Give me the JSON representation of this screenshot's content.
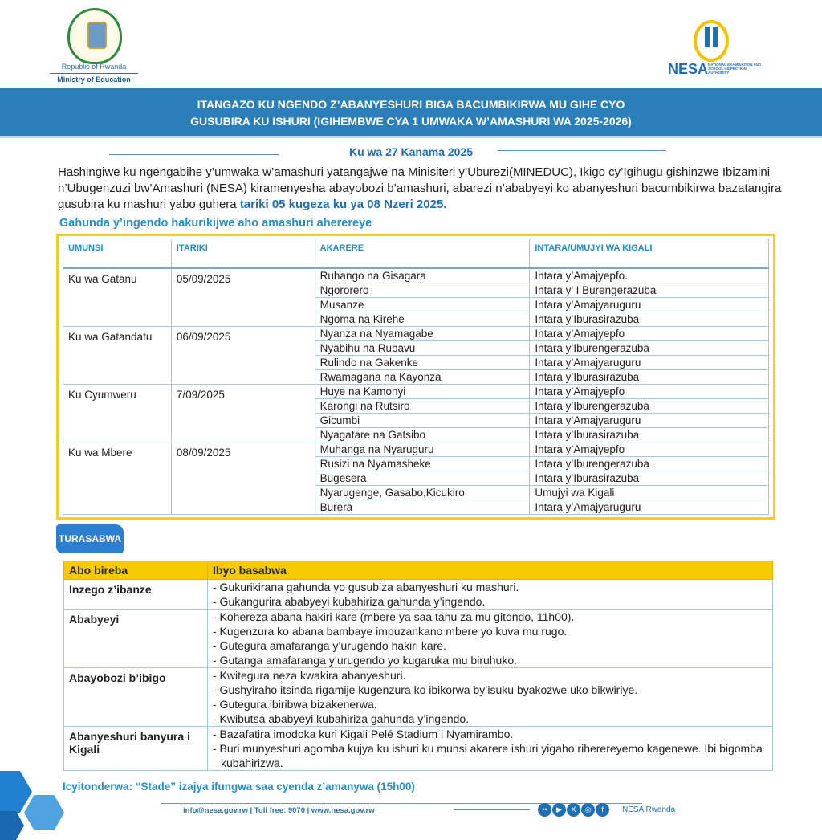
{
  "header": {
    "left_logo_line1": "Republic of Rwanda",
    "left_logo_line2": "Ministry of Education",
    "right_logo_name": "NESA",
    "right_logo_sub": "NATIONAL EXAMINATION AND SCHOOL INSPECTION AUTHORITY"
  },
  "banner": {
    "line1": "ITANGAZO KU NGENDO Z’ABANYESHURI BIGA BACUMBIKIRWA MU GIHE CYO",
    "line2": "GUSUBIRA KU ISHURI (IGIHEMBWE CYA 1 UMWAKA W’AMASHURI WA 2025-2026)"
  },
  "date": "Ku wa 27 Kanama 2025",
  "paragraph": {
    "text": "Hashingiwe ku ngengabihe y’umwaka w’amashuri yatangajwe na Minisiteri y’Uburezi(MINEDUC), Ikigo cy’Igihugu gishinzwe Ibizamini n’Ubugenzuzi bw’Amashuri (NESA) kiramenyesha abayobozi b’amashuri, abarezi n’ababyeyi ko abanyeshuri bacumbikirwa bazatangira gusubira ku mashuri yabo guhera ",
    "highlight": "tariki 05 kugeza ku ya 08 Nzeri 2025."
  },
  "schedule": {
    "title": "Gahunda y’ingendo hakurikijwe aho  amashuri aherereye",
    "headers": [
      "UMUNSI",
      "ITARIKI",
      "AKARERE",
      "INTARA/UMUJYI WA KIGALI"
    ],
    "days": [
      {
        "day": "Ku wa Gatanu",
        "date": "05/09/2025",
        "rows": [
          [
            "Ruhango na Gisagara",
            "Intara y’Amajyepfo."
          ],
          [
            "Ngororero",
            "Intara y’ I Burengerazuba"
          ],
          [
            "Musanze",
            "Intara y’Amajyaruguru"
          ],
          [
            "Ngoma na Kirehe",
            "Intara y’Iburasirazuba"
          ]
        ]
      },
      {
        "day": "Ku wa Gatandatu",
        "date": "06/09/2025",
        "rows": [
          [
            "Nyanza na Nyamagabe",
            "Intara y’Amajyepfo"
          ],
          [
            "Nyabihu na Rubavu",
            "Intara y’Iburengerazuba"
          ],
          [
            "Rulindo na Gakenke",
            "Intara y’Amajyaruguru"
          ],
          [
            "Rwamagana na Kayonza",
            "Intara y’Iburasirazuba"
          ]
        ]
      },
      {
        "day": "Ku Cyumweru",
        "date": "7/09/2025",
        "rows": [
          [
            "Huye na Kamonyi",
            "Intara y’Amajyepfo"
          ],
          [
            "Karongi na Rutsiro",
            "Intara y’Iburengerazuba"
          ],
          [
            "Gicumbi",
            "Intara y’Amajyaruguru"
          ],
          [
            "Nyagatare na Gatsibo",
            "Intara y’Iburasirazuba"
          ]
        ]
      },
      {
        "day": "Ku wa Mbere",
        "date": "08/09/2025",
        "rows": [
          [
            "Muhanga na Nyaruguru",
            "Intara y’Amajyepfo"
          ],
          [
            "Rusizi na Nyamasheke",
            "Intara y’Iburengerazuba"
          ],
          [
            "Bugesera",
            "Intara y’Iburasirazuba"
          ],
          [
            "Nyarugenge, Gasabo,Kicukiro",
            "Umujyi wa Kigali"
          ],
          [
            "Burera",
            "Intara y’Amajyaruguru"
          ]
        ]
      }
    ]
  },
  "requests": {
    "tab": "TURASABWA IKI?",
    "headers": [
      "Abo bireba",
      "Ibyo basabwa"
    ],
    "groups": [
      {
        "who": "Inzego z’ibanze",
        "items": [
          "- Gukurikirana gahunda yo gusubiza abanyeshuri ku mashuri.",
          "- Gukangurira ababyeyi kubahiriza gahunda y’ingendo."
        ]
      },
      {
        "who": "Ababyeyi",
        "items": [
          "- Kohereza abana hakiri kare (mbere ya saa tanu za mu gitondo, 11h00).",
          "- Kugenzura ko abana bambaye impuzankano mbere yo kuva mu rugo.",
          "- Gutegura amafaranga y’urugendo hakiri kare.",
          "- Gutanga amafaranga y’urugendo yo kugaruka mu biruhuko."
        ]
      },
      {
        "who": "Abayobozi b’ibigo",
        "items": [
          "- Kwitegura neza kwakira abanyeshuri.",
          "- Gushyiraho itsinda rigamije kugenzura ko ibikorwa by’isuku byakozwe uko bikwiriye.",
          "- Gutegura ibiribwa bizakenerwa.",
          "- Kwibutsa ababyeyi kubahiriza gahunda y’ingendo."
        ]
      },
      {
        "who": "Abanyeshuri banyura i Kigali",
        "items": [
          "- Bazafatira imodoka kuri Kigali Pelé Stadium i Nyamirambo.",
          "- Buri munyeshuri agomba kujya ku ishuri ku munsi akarere ishuri yigaho riherereyemo kagenewe. Ibi bigomba kubahirizwa."
        ]
      }
    ]
  },
  "note": "Icyitonderwa: “Stade” izajya ifungwa saa cyenda z’amanywa (15h00)",
  "footer": {
    "contact": "info@nesa.gov.rw | Toll free: 9070 | www.nesa.gov.rw",
    "social_icons": [
      "flickr-icon",
      "youtube-icon",
      "x-icon",
      "instagram-icon",
      "facebook-icon"
    ],
    "social_handle": "NESA Rwanda"
  },
  "colors": {
    "brand_blue": "#2b7fb8",
    "accent_yellow": "#f7c900"
  }
}
